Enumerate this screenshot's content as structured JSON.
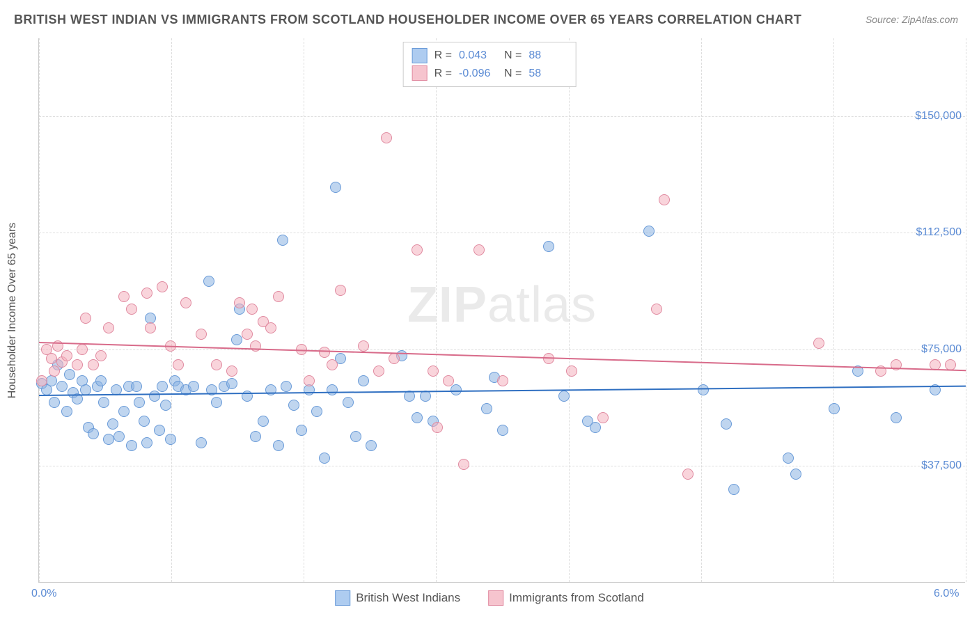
{
  "title": "BRITISH WEST INDIAN VS IMMIGRANTS FROM SCOTLAND HOUSEHOLDER INCOME OVER 65 YEARS CORRELATION CHART",
  "source": "Source: ZipAtlas.com",
  "ylabel": "Householder Income Over 65 years",
  "watermark_bold": "ZIP",
  "watermark_thin": "atlas",
  "background_color": "#ffffff",
  "grid_color": "#dddddd",
  "axis_color": "#cccccc",
  "tick_label_color": "#5b8bd4",
  "text_color": "#555555",
  "xlim": [
    0.0,
    6.0
  ],
  "ylim": [
    0,
    175000
  ],
  "xticks": [
    {
      "v": 0.0,
      "label": "0.0%"
    },
    {
      "v": 6.0,
      "label": "6.0%"
    }
  ],
  "xgrid": [
    0,
    0.857,
    1.714,
    2.571,
    3.429,
    4.286,
    5.143,
    6.0
  ],
  "yticks": [
    {
      "v": 37500,
      "label": "$37,500"
    },
    {
      "v": 75000,
      "label": "$75,000"
    },
    {
      "v": 112500,
      "label": "$112,500"
    },
    {
      "v": 150000,
      "label": "$150,000"
    }
  ],
  "legend_bottom": {
    "items": [
      {
        "label": "British West Indians",
        "fill": "#aeccf0",
        "stroke": "#6a9bd8"
      },
      {
        "label": "Immigrants from Scotland",
        "fill": "#f6c4ce",
        "stroke": "#e08aa0"
      }
    ]
  },
  "stats": [
    {
      "fill": "#aeccf0",
      "stroke": "#6a9bd8",
      "r": "0.043",
      "n": "88"
    },
    {
      "fill": "#f6c4ce",
      "stroke": "#e08aa0",
      "r": "-0.096",
      "n": "58"
    }
  ],
  "series": [
    {
      "name": "British West Indians",
      "marker_size": 16,
      "fill": "rgba(138,178,226,0.55)",
      "stroke": "#6a9bd8",
      "trend": {
        "color": "#2f6fc1",
        "y_at_x0": 60500,
        "y_at_x1": 63500
      },
      "points": [
        [
          0.02,
          64000
        ],
        [
          0.05,
          62000
        ],
        [
          0.08,
          65000
        ],
        [
          0.1,
          58000
        ],
        [
          0.12,
          70000
        ],
        [
          0.15,
          63000
        ],
        [
          0.18,
          55000
        ],
        [
          0.2,
          67000
        ],
        [
          0.22,
          61000
        ],
        [
          0.25,
          59000
        ],
        [
          0.28,
          65000
        ],
        [
          0.3,
          62000
        ],
        [
          0.32,
          50000
        ],
        [
          0.35,
          48000
        ],
        [
          0.38,
          63000
        ],
        [
          0.4,
          65000
        ],
        [
          0.42,
          58000
        ],
        [
          0.45,
          46000
        ],
        [
          0.48,
          51000
        ],
        [
          0.5,
          62000
        ],
        [
          0.52,
          47000
        ],
        [
          0.55,
          55000
        ],
        [
          0.58,
          63000
        ],
        [
          0.6,
          44000
        ],
        [
          0.63,
          63000
        ],
        [
          0.65,
          58000
        ],
        [
          0.68,
          52000
        ],
        [
          0.7,
          45000
        ],
        [
          0.72,
          85000
        ],
        [
          0.75,
          60000
        ],
        [
          0.78,
          49000
        ],
        [
          0.8,
          63000
        ],
        [
          0.82,
          57000
        ],
        [
          0.85,
          46000
        ],
        [
          0.88,
          65000
        ],
        [
          0.9,
          63000
        ],
        [
          0.95,
          62000
        ],
        [
          1.0,
          63000
        ],
        [
          1.05,
          45000
        ],
        [
          1.1,
          97000
        ],
        [
          1.12,
          62000
        ],
        [
          1.15,
          58000
        ],
        [
          1.2,
          63000
        ],
        [
          1.25,
          64000
        ],
        [
          1.28,
          78000
        ],
        [
          1.3,
          88000
        ],
        [
          1.35,
          60000
        ],
        [
          1.4,
          47000
        ],
        [
          1.45,
          52000
        ],
        [
          1.5,
          62000
        ],
        [
          1.55,
          44000
        ],
        [
          1.58,
          110000
        ],
        [
          1.6,
          63000
        ],
        [
          1.65,
          57000
        ],
        [
          1.7,
          49000
        ],
        [
          1.75,
          62000
        ],
        [
          1.8,
          55000
        ],
        [
          1.85,
          40000
        ],
        [
          1.9,
          62000
        ],
        [
          1.92,
          127000
        ],
        [
          1.95,
          72000
        ],
        [
          2.0,
          58000
        ],
        [
          2.05,
          47000
        ],
        [
          2.1,
          65000
        ],
        [
          2.15,
          44000
        ],
        [
          2.35,
          73000
        ],
        [
          2.4,
          60000
        ],
        [
          2.45,
          53000
        ],
        [
          2.5,
          60000
        ],
        [
          2.55,
          52000
        ],
        [
          2.7,
          62000
        ],
        [
          2.9,
          56000
        ],
        [
          2.95,
          66000
        ],
        [
          3.0,
          49000
        ],
        [
          3.3,
          108000
        ],
        [
          3.4,
          60000
        ],
        [
          3.55,
          52000
        ],
        [
          3.6,
          50000
        ],
        [
          3.95,
          113000
        ],
        [
          4.3,
          62000
        ],
        [
          4.45,
          51000
        ],
        [
          4.5,
          30000
        ],
        [
          4.85,
          40000
        ],
        [
          4.9,
          35000
        ],
        [
          5.15,
          56000
        ],
        [
          5.3,
          68000
        ],
        [
          5.55,
          53000
        ],
        [
          5.8,
          62000
        ]
      ]
    },
    {
      "name": "Immigrants from Scotland",
      "marker_size": 16,
      "fill": "rgba(244,176,190,0.55)",
      "stroke": "#e08aa0",
      "trend": {
        "color": "#d86b8a",
        "y_at_x0": 77500,
        "y_at_x1": 68500
      },
      "points": [
        [
          0.02,
          65000
        ],
        [
          0.05,
          75000
        ],
        [
          0.08,
          72000
        ],
        [
          0.1,
          68000
        ],
        [
          0.12,
          76000
        ],
        [
          0.15,
          71000
        ],
        [
          0.18,
          73000
        ],
        [
          0.25,
          70000
        ],
        [
          0.28,
          75000
        ],
        [
          0.3,
          85000
        ],
        [
          0.35,
          70000
        ],
        [
          0.4,
          73000
        ],
        [
          0.45,
          82000
        ],
        [
          0.55,
          92000
        ],
        [
          0.6,
          88000
        ],
        [
          0.7,
          93000
        ],
        [
          0.72,
          82000
        ],
        [
          0.8,
          95000
        ],
        [
          0.85,
          76000
        ],
        [
          0.9,
          70000
        ],
        [
          0.95,
          90000
        ],
        [
          1.05,
          80000
        ],
        [
          1.15,
          70000
        ],
        [
          1.25,
          68000
        ],
        [
          1.3,
          90000
        ],
        [
          1.35,
          80000
        ],
        [
          1.38,
          88000
        ],
        [
          1.4,
          76000
        ],
        [
          1.45,
          84000
        ],
        [
          1.5,
          82000
        ],
        [
          1.55,
          92000
        ],
        [
          1.7,
          75000
        ],
        [
          1.75,
          65000
        ],
        [
          1.85,
          74000
        ],
        [
          1.9,
          70000
        ],
        [
          1.95,
          94000
        ],
        [
          2.1,
          76000
        ],
        [
          2.2,
          68000
        ],
        [
          2.25,
          143000
        ],
        [
          2.3,
          72000
        ],
        [
          2.45,
          107000
        ],
        [
          2.55,
          68000
        ],
        [
          2.58,
          50000
        ],
        [
          2.65,
          65000
        ],
        [
          2.75,
          38000
        ],
        [
          2.85,
          107000
        ],
        [
          3.0,
          65000
        ],
        [
          3.3,
          72000
        ],
        [
          3.45,
          68000
        ],
        [
          3.65,
          53000
        ],
        [
          4.0,
          88000
        ],
        [
          4.05,
          123000
        ],
        [
          4.2,
          35000
        ],
        [
          5.05,
          77000
        ],
        [
          5.45,
          68000
        ],
        [
          5.55,
          70000
        ],
        [
          5.8,
          70000
        ],
        [
          5.9,
          70000
        ]
      ]
    }
  ]
}
